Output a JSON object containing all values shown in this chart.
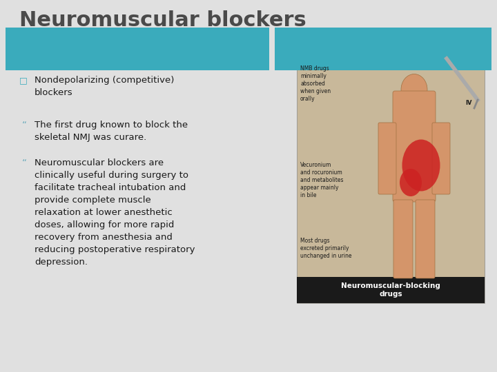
{
  "title": "Neuromuscular blockers",
  "title_color": "#4a4a4a",
  "title_fontsize": 22,
  "bg_color": "#e0e0e0",
  "teal_color": "#3aabbc",
  "bullet1_marker": "□",
  "bullet1_text": "Nondepolarizing (competitive)\nblockers",
  "bullet1_color": "#3aabbc",
  "sub_bullets": [
    "The first drug known to block the\nskeletal NMJ was curare.",
    "Neuromuscular blockers are\nclinically useful during surgery to\nfacilitate tracheal intubation and\nprovide complete muscle\nrelaxation at lower anesthetic\ndoses, allowing for more rapid\nrecovery from anesthesia and\nreducing postoperative respiratory\ndepression."
  ],
  "sub_marker_color": "#6aabbc",
  "text_fontsize": 9.5,
  "footer_teal": "#3aabbc",
  "img_bg": "#c8b89a",
  "img_footer_bg": "#1a1a1a",
  "img_text_color": "#ffffff",
  "img_label_color": "#1a1a1a",
  "skin_color": "#d4956a",
  "red_color": "#cc2222"
}
